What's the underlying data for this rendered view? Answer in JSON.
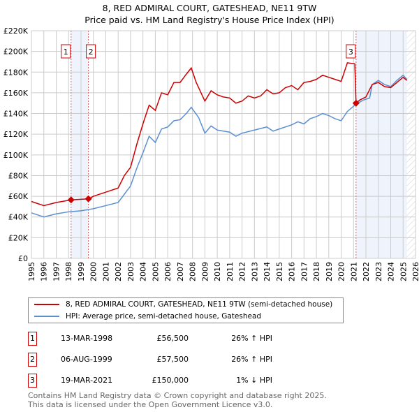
{
  "chart_data": {
    "type": "line",
    "title": "8, RED ADMIRAL COURT, GATESHEAD, NE11 9TW",
    "subtitle": "Price paid vs. HM Land Registry's House Price Index (HPI)",
    "xlim": [
      1995,
      2026
    ],
    "ylim": [
      0,
      220000
    ],
    "x_ticks": [
      "1995",
      "1996",
      "1997",
      "1998",
      "1999",
      "2000",
      "2001",
      "2002",
      "2003",
      "2004",
      "2005",
      "2006",
      "2007",
      "2008",
      "2009",
      "2010",
      "2011",
      "2012",
      "2013",
      "2014",
      "2015",
      "2016",
      "2017",
      "2018",
      "2019",
      "2020",
      "2021",
      "2022",
      "2023",
      "2024",
      "2025",
      "2026"
    ],
    "y_ticks": [
      "£0",
      "£20K",
      "£40K",
      "£60K",
      "£80K",
      "£100K",
      "£120K",
      "£140K",
      "£160K",
      "£180K",
      "£200K",
      "£220K"
    ],
    "grid": true,
    "series": [
      {
        "name": "8, RED ADMIRAL COURT, GATESHEAD, NE11 9TW (semi-detached house)",
        "color": "#cc0000",
        "x": [
          1995,
          1996,
          1997,
          1998.2,
          1999.6,
          2000,
          2001,
          2002,
          2002.5,
          2003,
          2003.5,
          2004,
          2004.5,
          2005,
          2005.5,
          2006,
          2006.5,
          2007,
          2007.5,
          2007.9,
          2008.3,
          2009,
          2009.5,
          2010,
          2010.5,
          2011,
          2011.5,
          2012,
          2012.5,
          2013,
          2013.5,
          2014,
          2014.5,
          2015,
          2015.5,
          2016,
          2016.5,
          2017,
          2017.5,
          2018,
          2018.5,
          2019,
          2019.5,
          2020,
          2020.5,
          2021.1,
          2021.2,
          2021.5,
          2022,
          2022.5,
          2023,
          2023.5,
          2024,
          2024.5,
          2025,
          2025.3
        ],
        "y": [
          55000,
          51000,
          54000,
          56500,
          57500,
          60000,
          64000,
          68000,
          80000,
          88000,
          110000,
          130000,
          148000,
          143000,
          160000,
          158000,
          170000,
          170000,
          178000,
          184000,
          170000,
          152000,
          162000,
          158000,
          156000,
          155000,
          150000,
          152000,
          157000,
          155000,
          157000,
          163000,
          159000,
          160000,
          165000,
          167000,
          163000,
          170000,
          171000,
          173000,
          177000,
          175000,
          173000,
          171000,
          189000,
          188000,
          150000,
          153000,
          156000,
          168000,
          170000,
          166000,
          165000,
          170000,
          175000,
          172000
        ]
      },
      {
        "name": "HPI: Average price, semi-detached house, Gateshead",
        "color": "#5b8fd0",
        "x": [
          1995,
          1996,
          1997,
          1998,
          1999,
          2000,
          2001,
          2002,
          2002.5,
          2003,
          2003.5,
          2004,
          2004.5,
          2005,
          2005.5,
          2006,
          2006.5,
          2007,
          2007.5,
          2007.9,
          2008.5,
          2009,
          2009.5,
          2010,
          2011,
          2011.5,
          2012,
          2013,
          2014,
          2014.5,
          2015,
          2016,
          2016.5,
          2017,
          2017.5,
          2018,
          2018.5,
          2019,
          2019.5,
          2020,
          2020.5,
          2021.2,
          2021.8,
          2022.3,
          2022.5,
          2023,
          2023.5,
          2024,
          2024.5,
          2025,
          2025.3
        ],
        "y": [
          44000,
          40000,
          43000,
          45000,
          46000,
          48000,
          51000,
          54000,
          62000,
          70000,
          87000,
          102000,
          118000,
          112000,
          125000,
          127000,
          133000,
          134000,
          140000,
          146000,
          136000,
          121000,
          128000,
          124000,
          122000,
          118000,
          121000,
          124000,
          127000,
          123000,
          125000,
          129000,
          132000,
          130000,
          135000,
          137000,
          140000,
          138000,
          135000,
          133000,
          142000,
          149000,
          153000,
          155000,
          168000,
          172000,
          168000,
          166000,
          172000,
          177000,
          173000
        ]
      }
    ],
    "sales": [
      {
        "label": "1",
        "date": "13-MAR-1998",
        "x": 1998.2,
        "price": "£56,500",
        "value": 56500,
        "hpi": "26% ↑ HPI"
      },
      {
        "label": "2",
        "date": "06-AUG-1999",
        "x": 1999.6,
        "price": "£57,500",
        "value": 57500,
        "hpi": "26% ↑ HPI"
      },
      {
        "label": "3",
        "date": "19-MAR-2021",
        "x": 2021.2,
        "price": "£150,000",
        "value": 150000,
        "hpi": "1% ↓ HPI"
      }
    ],
    "shaded": [
      [
        1998.2,
        1999.6
      ],
      [
        2021.2,
        2025.3
      ]
    ],
    "forecast_hatch_from": 2025.3
  },
  "footer": [
    "Contains HM Land Registry data © Crown copyright and database right 2025.",
    "This data is licensed under the Open Government Licence v3.0."
  ]
}
